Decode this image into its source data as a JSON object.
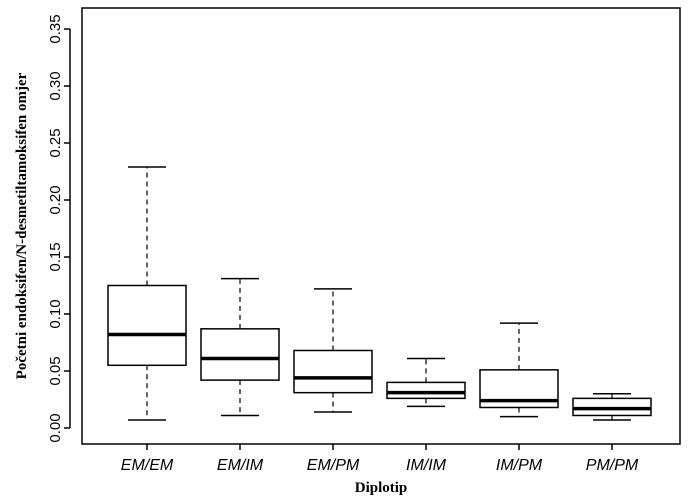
{
  "chart_data": {
    "type": "boxplot",
    "xlabel": "Diplotip",
    "ylabel": "Početni endoksifen/N-desmetiltamoksifen omjer",
    "ylim": [
      0,
      0.35
    ],
    "yticks": [
      "0.00",
      "0.05",
      "0.10",
      "0.15",
      "0.20",
      "0.25",
      "0.30",
      "0.35"
    ],
    "ytick_values": [
      0,
      0.05,
      0.1,
      0.15,
      0.2,
      0.25,
      0.3,
      0.35
    ],
    "grid": false,
    "categories": [
      "EM/EM",
      "EM/IM",
      "EM/PM",
      "IM/IM",
      "IM/PM",
      "PM/PM"
    ],
    "boxes": [
      {
        "min": 0.007,
        "q1": 0.055,
        "median": 0.082,
        "q3": 0.125,
        "max": 0.229
      },
      {
        "min": 0.011,
        "q1": 0.042,
        "median": 0.061,
        "q3": 0.087,
        "max": 0.131
      },
      {
        "min": 0.014,
        "q1": 0.031,
        "median": 0.044,
        "q3": 0.068,
        "max": 0.122
      },
      {
        "min": 0.019,
        "q1": 0.026,
        "median": 0.031,
        "q3": 0.04,
        "max": 0.061
      },
      {
        "min": 0.01,
        "q1": 0.018,
        "median": 0.024,
        "q3": 0.051,
        "max": 0.092
      },
      {
        "min": 0.007,
        "q1": 0.011,
        "median": 0.017,
        "q3": 0.026,
        "max": 0.03
      }
    ],
    "colors": {
      "box_fill": "#ffffff",
      "stroke": "#000000"
    }
  }
}
